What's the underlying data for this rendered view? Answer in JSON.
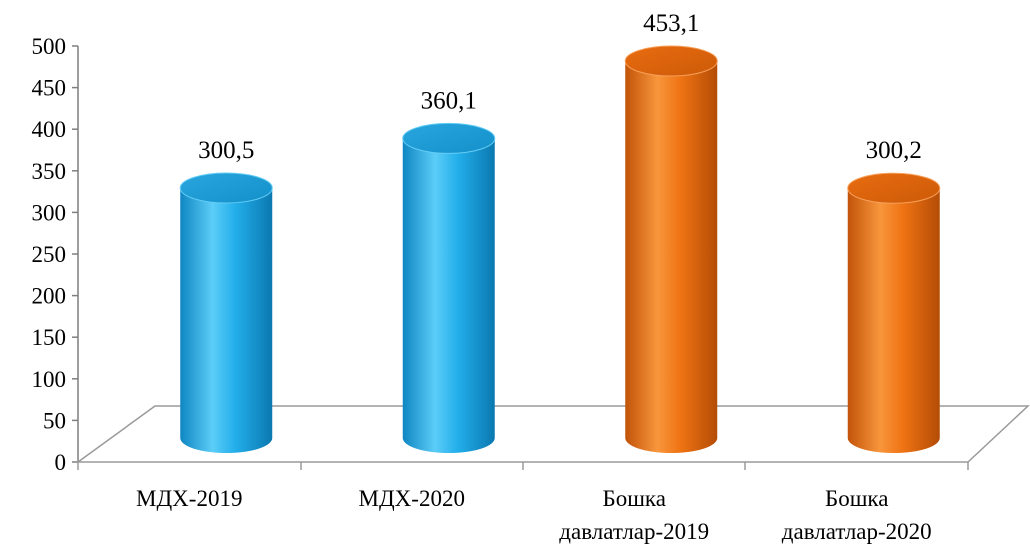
{
  "chart_data": {
    "type": "bar",
    "style": "3d-cylinder",
    "title": "",
    "xlabel": "",
    "ylabel": "",
    "ylim": [
      0,
      500
    ],
    "yticks": [
      0,
      50,
      100,
      150,
      200,
      250,
      300,
      350,
      400,
      450,
      500
    ],
    "grid": false,
    "categories": [
      [
        "МДХ-2019"
      ],
      [
        "МДХ-2020"
      ],
      [
        "Бошка",
        "давлатлар-2019"
      ],
      [
        "Бошка",
        "давлатлар-2020"
      ]
    ],
    "values": [
      300.5,
      360.1,
      453.1,
      300.2
    ],
    "data_labels": [
      "300,5",
      "360,1",
      "453,1",
      "300,2"
    ],
    "colors": [
      "#1fa9e8",
      "#1fa9e8",
      "#f07417",
      "#f07417"
    ]
  }
}
